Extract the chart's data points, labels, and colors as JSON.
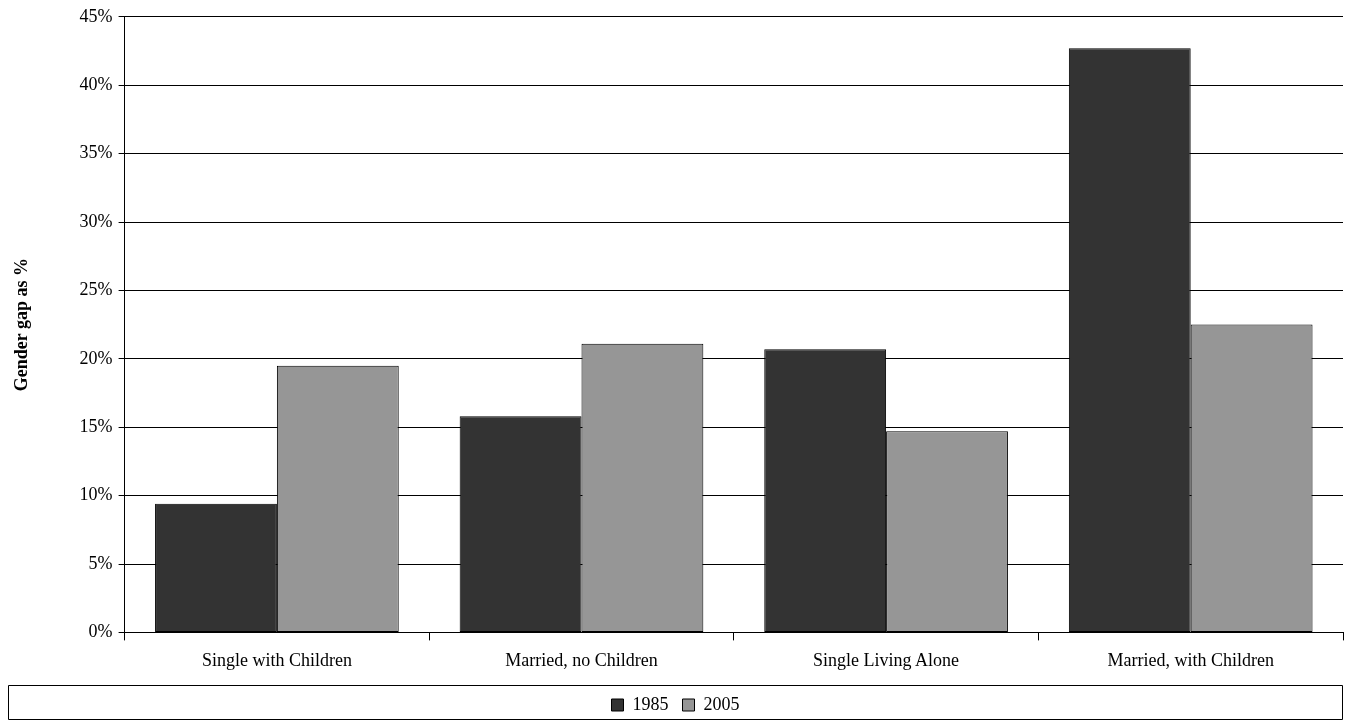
{
  "chart_data": {
    "type": "bar",
    "ylabel": "Gender gap as %",
    "categories": [
      "Single with Children",
      "Married, no Children",
      "Single Living Alone",
      "Married, with Children"
    ],
    "series": [
      {
        "name": "1985",
        "color": "#333333",
        "values": [
          9.4,
          15.8,
          20.7,
          42.7
        ]
      },
      {
        "name": "2005",
        "color": "#969696",
        "values": [
          19.5,
          21.1,
          14.7,
          22.5
        ]
      }
    ],
    "ylim": [
      0,
      45
    ],
    "yticks": [
      {
        "value": 0,
        "label": "0%"
      },
      {
        "value": 5,
        "label": "5%"
      },
      {
        "value": 10,
        "label": "10%"
      },
      {
        "value": 15,
        "label": "15%"
      },
      {
        "value": 20,
        "label": "20%"
      },
      {
        "value": 25,
        "label": "25%"
      },
      {
        "value": 30,
        "label": "30%"
      },
      {
        "value": 35,
        "label": "35%"
      },
      {
        "value": 40,
        "label": "40%"
      },
      {
        "value": 45,
        "label": "45%"
      }
    ],
    "grid": "y",
    "legend": "bottom"
  }
}
